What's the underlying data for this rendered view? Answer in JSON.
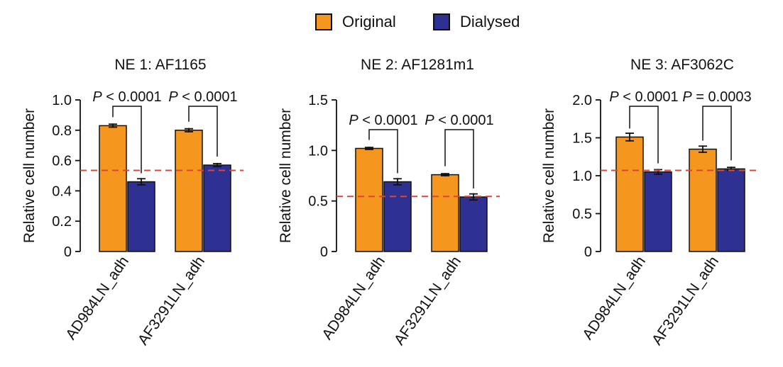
{
  "colors": {
    "original": "#F5961E",
    "dialysed": "#2E3192",
    "reference_line": "#D9473B"
  },
  "legend": {
    "original_label": "Original",
    "dialysed_label": "Dialysed"
  },
  "chart_data": [
    {
      "type": "bar",
      "title": "NE 1: AF1165",
      "ylabel": "Relative cell number",
      "ylim": [
        0,
        1.0
      ],
      "yticks": [
        0,
        0.2,
        0.4,
        0.6,
        0.8,
        1.0
      ],
      "ytick_labels": [
        "0",
        "0.2",
        "0.4",
        "0.6",
        "0.8",
        "1.0"
      ],
      "categories": [
        "AD984LN_adh",
        "AF3291LN_adh"
      ],
      "series": [
        {
          "name": "Original",
          "values": [
            0.83,
            0.8
          ],
          "errors": [
            0.01,
            0.01
          ]
        },
        {
          "name": "Dialysed",
          "values": [
            0.46,
            0.57
          ],
          "errors": [
            0.02,
            0.01
          ]
        }
      ],
      "reference_line": 0.535,
      "annotations": [
        "P < 0.0001",
        "P < 0.0001"
      ]
    },
    {
      "type": "bar",
      "title": "NE 2: AF1281m1",
      "ylabel": "Relative cell number",
      "ylim": [
        0,
        1.5
      ],
      "yticks": [
        0,
        0.5,
        1.0,
        1.5
      ],
      "ytick_labels": [
        "0",
        "0.5",
        "1.0",
        "1.5"
      ],
      "categories": [
        "AD984LN_adh",
        "AF3291LN_adh"
      ],
      "series": [
        {
          "name": "Original",
          "values": [
            1.02,
            0.76
          ],
          "errors": [
            0.01,
            0.01
          ]
        },
        {
          "name": "Dialysed",
          "values": [
            0.69,
            0.54
          ],
          "errors": [
            0.03,
            0.03
          ]
        }
      ],
      "reference_line": 0.545,
      "annotations": [
        "P < 0.0001",
        "P < 0.0001"
      ]
    },
    {
      "type": "bar",
      "title": "NE 3: AF3062C",
      "ylabel": "Relative cell number",
      "ylim": [
        0,
        2.0
      ],
      "yticks": [
        0,
        0.5,
        1.0,
        1.5,
        2.0
      ],
      "ytick_labels": [
        "0",
        "0.5",
        "1.0",
        "1.5",
        "2.0"
      ],
      "categories": [
        "AD984LN_adh",
        "AF3291LN_adh"
      ],
      "series": [
        {
          "name": "Original",
          "values": [
            1.51,
            1.35
          ],
          "errors": [
            0.05,
            0.04
          ]
        },
        {
          "name": "Dialysed",
          "values": [
            1.05,
            1.09
          ],
          "errors": [
            0.03,
            0.02
          ]
        }
      ],
      "reference_line": 1.07,
      "annotations": [
        "P < 0.0001",
        "P = 0.0003"
      ]
    }
  ]
}
